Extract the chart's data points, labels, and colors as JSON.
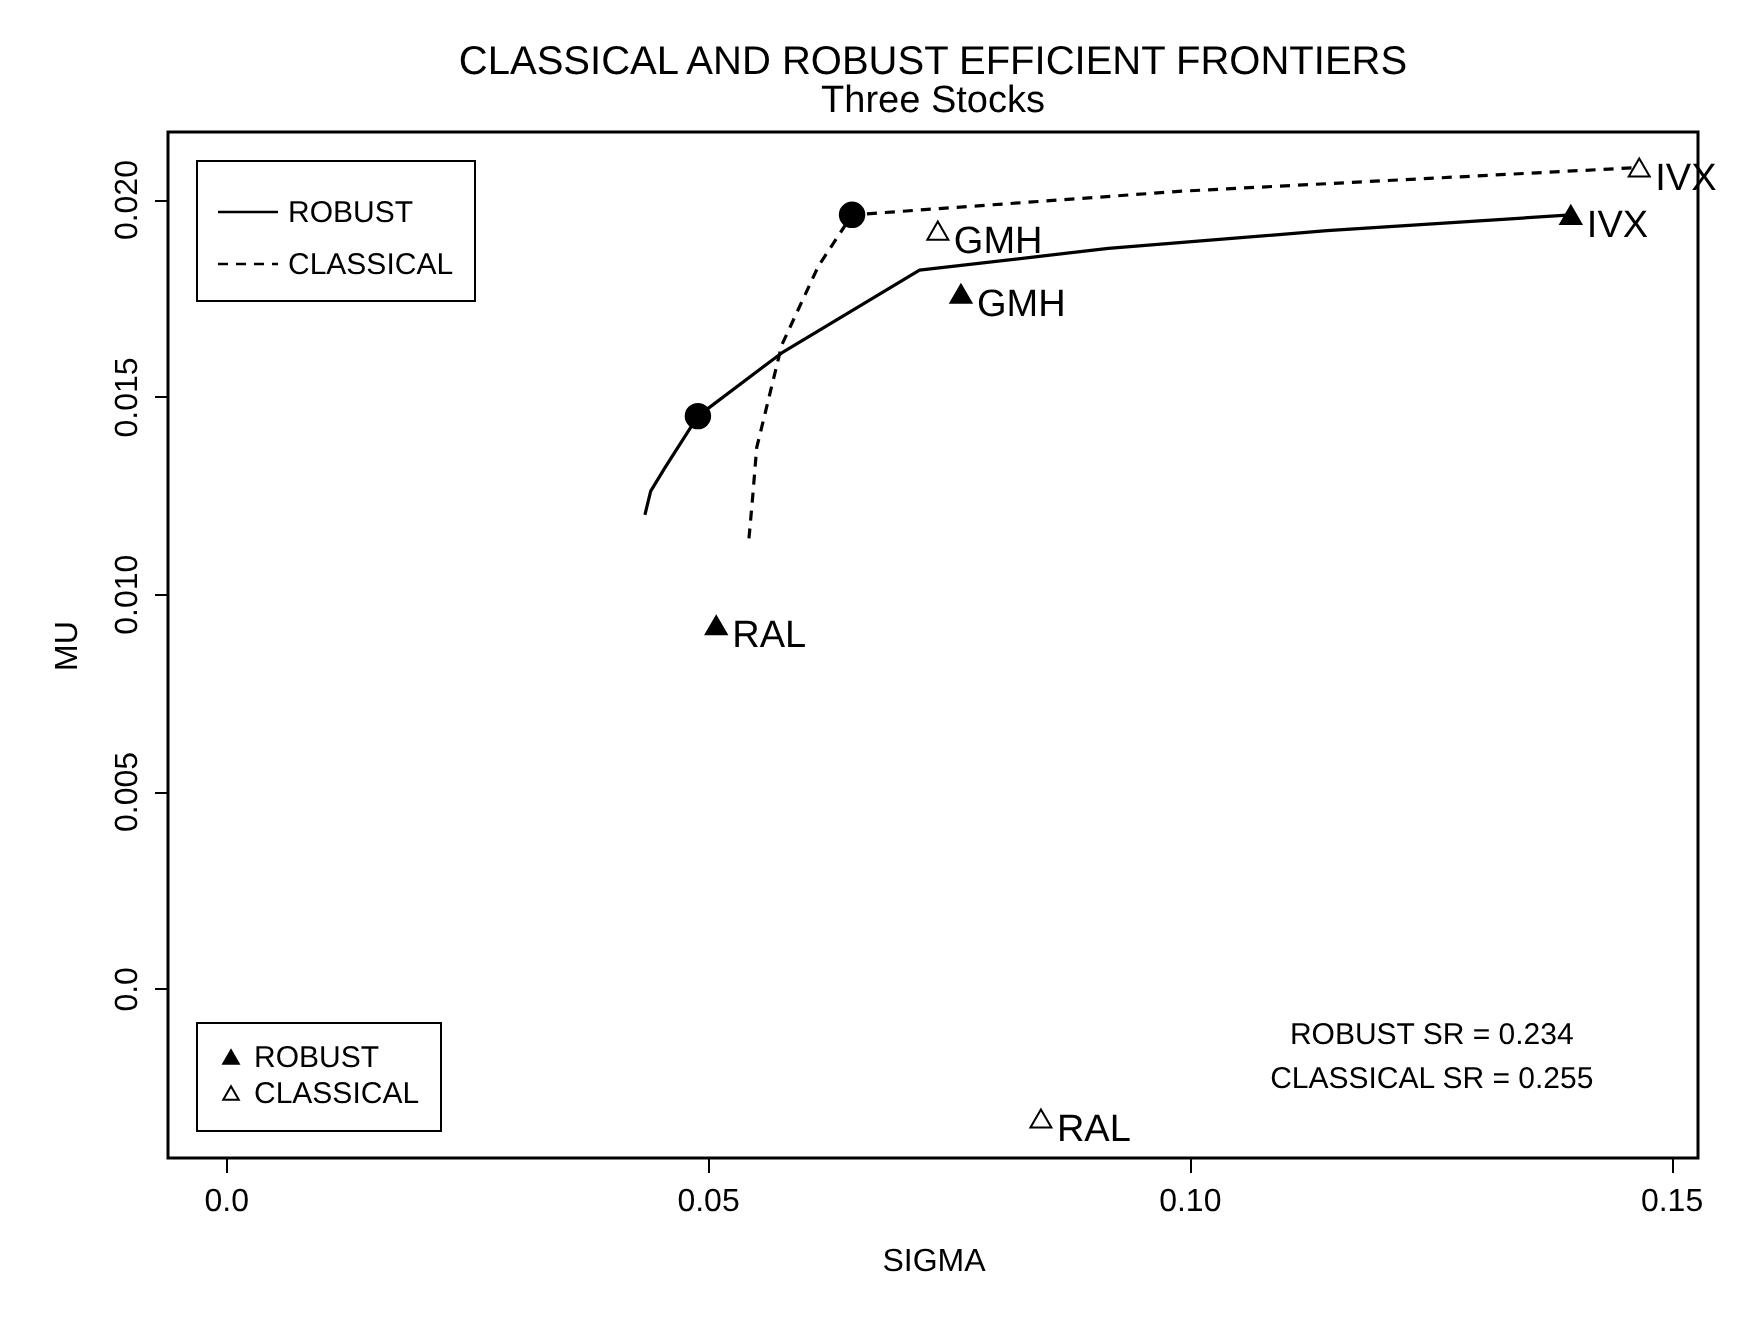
{
  "chart_data": {
    "type": "line",
    "title": "CLASSICAL AND ROBUST EFFICIENT FRONTIERS",
    "subtitle": "Three Stocks",
    "xlabel": "SIGMA",
    "ylabel": "MU",
    "xlim": [
      -0.006,
      0.1528
    ],
    "ylim": [
      -0.0043,
      0.0217
    ],
    "xticks": [
      {
        "value": 0,
        "label": "0.0"
      },
      0.05,
      {
        "value": 0.1,
        "label": "0.10"
      },
      0.15
    ],
    "yticks": [
      {
        "value": 0,
        "label": "0.0"
      },
      0.005,
      {
        "value": 0.01,
        "label": "0.010"
      },
      0.015,
      {
        "value": 0.02,
        "label": "0.020"
      }
    ],
    "legend": "left",
    "series": [
      {
        "name": "ROBUST",
        "line_style": "solid",
        "color": "#000000",
        "x": [
          0.0435,
          0.0441,
          0.0456,
          0.049,
          0.0577,
          0.072,
          0.0916,
          0.1143,
          0.1396
        ],
        "values": [
          0.012,
          0.0126,
          0.0132,
          0.0145,
          0.0161,
          0.0182,
          0.01875,
          0.0192,
          0.0196
        ]
      },
      {
        "name": "CLASSICAL",
        "line_style": "dashed",
        "color": "#000000",
        "x": [
          0.0543,
          0.0547,
          0.0551,
          0.0577,
          0.0615,
          0.065,
          0.0992,
          0.1467
        ],
        "values": [
          0.0114,
          0.0125,
          0.0137,
          0.0163,
          0.0183,
          0.0196,
          0.0202,
          0.0208
        ]
      },
      {
        "type": "scatter",
        "marker": "circle",
        "color": "#000000",
        "x": [
          0.049,
          0.065
        ],
        "values": [
          0.0145,
          0.0196
        ]
      },
      {
        "name": "ROBUST",
        "type": "scatter",
        "marker": "triangle",
        "color": "#000000",
        "x": [
          0.0509,
          0.0763,
          0.1396
        ],
        "values": [
          0.0092,
          0.0176,
          0.0196
        ]
      },
      {
        "name": "CLASSICAL",
        "type": "scatter",
        "marker": "triangle",
        "color": "#ffffff",
        "x": [
          0.0846,
          0.0739,
          0.1467
        ],
        "values": [
          -0.0033,
          0.0192,
          0.0208
        ]
      }
    ],
    "annotations": [
      {
        "text": "RAL",
        "x": 0.0509,
        "y": 0.0092
      },
      {
        "text": "GMH",
        "x": 0.0763,
        "y": 0.0176
      },
      {
        "text": "IVX",
        "x": 0.1396,
        "y": 0.0196
      },
      {
        "text": "RAL",
        "x": 0.0846,
        "y": -0.0033
      },
      {
        "text": "GMH",
        "x": 0.0739,
        "y": 0.0192
      },
      {
        "text": "IVX",
        "x": 0.1467,
        "y": 0.0208
      },
      "ROBUST SR = 0.234",
      "CLASSICAL SR = 0.255"
    ]
  }
}
